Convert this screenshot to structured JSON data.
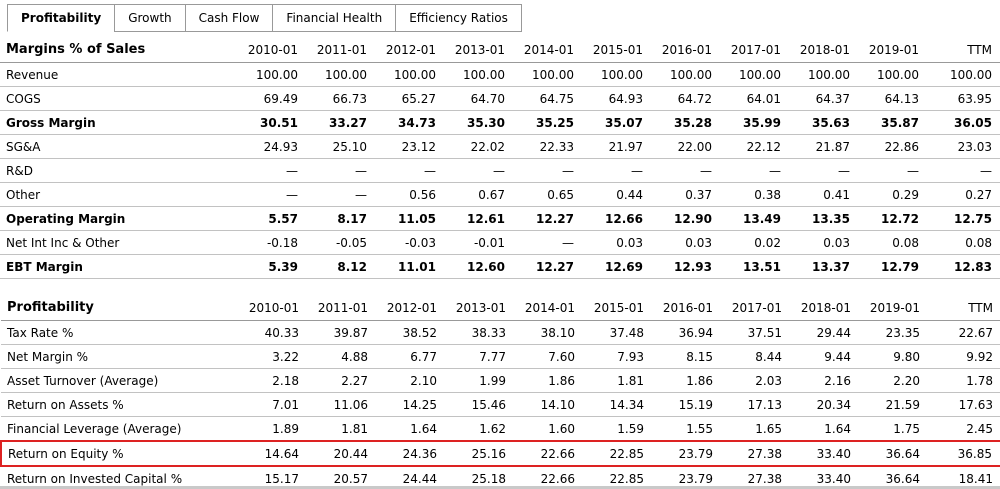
{
  "tabs": [
    {
      "label": "Profitability",
      "active": true
    },
    {
      "label": "Growth",
      "active": false
    },
    {
      "label": "Cash Flow",
      "active": false
    },
    {
      "label": "Financial Health",
      "active": false
    },
    {
      "label": "Efficiency Ratios",
      "active": false
    }
  ],
  "columns": [
    "2010-01",
    "2011-01",
    "2012-01",
    "2013-01",
    "2014-01",
    "2015-01",
    "2016-01",
    "2017-01",
    "2018-01",
    "2019-01",
    "TTM"
  ],
  "tables": [
    {
      "title": "Margins % of Sales",
      "rows": [
        {
          "label": "Revenue",
          "bold": false,
          "highlight": false,
          "values": [
            "100.00",
            "100.00",
            "100.00",
            "100.00",
            "100.00",
            "100.00",
            "100.00",
            "100.00",
            "100.00",
            "100.00",
            "100.00"
          ]
        },
        {
          "label": "COGS",
          "bold": false,
          "highlight": false,
          "values": [
            "69.49",
            "66.73",
            "65.27",
            "64.70",
            "64.75",
            "64.93",
            "64.72",
            "64.01",
            "64.37",
            "64.13",
            "63.95"
          ]
        },
        {
          "label": "Gross Margin",
          "bold": true,
          "highlight": false,
          "values": [
            "30.51",
            "33.27",
            "34.73",
            "35.30",
            "35.25",
            "35.07",
            "35.28",
            "35.99",
            "35.63",
            "35.87",
            "36.05"
          ]
        },
        {
          "label": "SG&A",
          "bold": false,
          "highlight": false,
          "values": [
            "24.93",
            "25.10",
            "23.12",
            "22.02",
            "22.33",
            "21.97",
            "22.00",
            "22.12",
            "21.87",
            "22.86",
            "23.03"
          ]
        },
        {
          "label": "R&D",
          "bold": false,
          "highlight": false,
          "values": [
            "—",
            "—",
            "—",
            "—",
            "—",
            "—",
            "—",
            "—",
            "—",
            "—",
            "—"
          ]
        },
        {
          "label": "Other",
          "bold": false,
          "highlight": false,
          "values": [
            "—",
            "—",
            "0.56",
            "0.67",
            "0.65",
            "0.44",
            "0.37",
            "0.38",
            "0.41",
            "0.29",
            "0.27"
          ]
        },
        {
          "label": "Operating Margin",
          "bold": true,
          "highlight": false,
          "values": [
            "5.57",
            "8.17",
            "11.05",
            "12.61",
            "12.27",
            "12.66",
            "12.90",
            "13.49",
            "13.35",
            "12.72",
            "12.75"
          ]
        },
        {
          "label": "Net Int Inc & Other",
          "bold": false,
          "highlight": false,
          "values": [
            "-0.18",
            "-0.05",
            "-0.03",
            "-0.01",
            "—",
            "0.03",
            "0.03",
            "0.02",
            "0.03",
            "0.08",
            "0.08"
          ]
        },
        {
          "label": "EBT Margin",
          "bold": true,
          "highlight": false,
          "values": [
            "5.39",
            "8.12",
            "11.01",
            "12.60",
            "12.27",
            "12.69",
            "12.93",
            "13.51",
            "13.37",
            "12.79",
            "12.83"
          ]
        }
      ]
    },
    {
      "title": "Profitability",
      "rows": [
        {
          "label": "Tax Rate %",
          "bold": false,
          "highlight": false,
          "values": [
            "40.33",
            "39.87",
            "38.52",
            "38.33",
            "38.10",
            "37.48",
            "36.94",
            "37.51",
            "29.44",
            "23.35",
            "22.67"
          ]
        },
        {
          "label": "Net Margin %",
          "bold": false,
          "highlight": false,
          "values": [
            "3.22",
            "4.88",
            "6.77",
            "7.77",
            "7.60",
            "7.93",
            "8.15",
            "8.44",
            "9.44",
            "9.80",
            "9.92"
          ]
        },
        {
          "label": "Asset Turnover (Average)",
          "bold": false,
          "highlight": false,
          "values": [
            "2.18",
            "2.27",
            "2.10",
            "1.99",
            "1.86",
            "1.81",
            "1.86",
            "2.03",
            "2.16",
            "2.20",
            "1.78"
          ]
        },
        {
          "label": "Return on Assets %",
          "bold": false,
          "highlight": false,
          "values": [
            "7.01",
            "11.06",
            "14.25",
            "15.46",
            "14.10",
            "14.34",
            "15.19",
            "17.13",
            "20.34",
            "21.59",
            "17.63"
          ]
        },
        {
          "label": "Financial Leverage (Average)",
          "bold": false,
          "highlight": false,
          "values": [
            "1.89",
            "1.81",
            "1.64",
            "1.62",
            "1.60",
            "1.59",
            "1.55",
            "1.65",
            "1.64",
            "1.75",
            "2.45"
          ]
        },
        {
          "label": "Return on Equity %",
          "bold": false,
          "highlight": true,
          "values": [
            "14.64",
            "20.44",
            "24.36",
            "25.16",
            "22.66",
            "22.85",
            "23.79",
            "27.38",
            "33.40",
            "36.64",
            "36.85"
          ]
        },
        {
          "label": "Return on Invested Capital %",
          "bold": false,
          "highlight": false,
          "values": [
            "15.17",
            "20.57",
            "24.44",
            "25.18",
            "22.66",
            "22.85",
            "23.79",
            "27.38",
            "33.40",
            "36.64",
            "18.41"
          ]
        }
      ]
    }
  ],
  "colors": {
    "highlight_border": "#dd2222",
    "row_line": "#c2c2c2",
    "header_line": "#999999",
    "tab_border": "#999999",
    "text": "#000000"
  }
}
